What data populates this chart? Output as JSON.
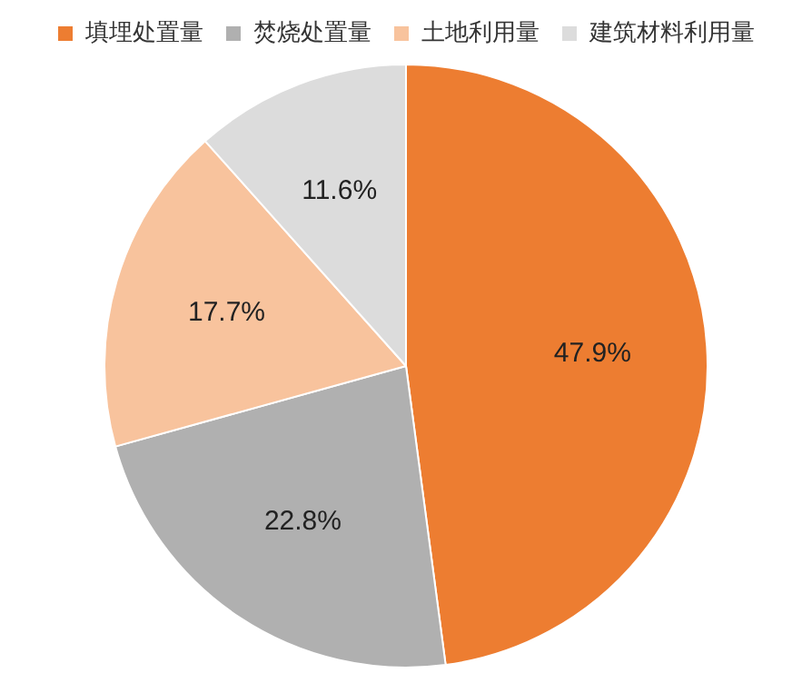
{
  "chart_data": {
    "type": "pie",
    "categories": [
      "填埋处置量",
      "焚烧处置量",
      "土地利用量",
      "建筑材料利用量"
    ],
    "values": [
      47.9,
      22.8,
      17.7,
      11.6
    ],
    "value_labels": [
      "47.9%",
      "22.8%",
      "17.7%",
      "11.6%"
    ],
    "colors": [
      "#ed7d31",
      "#b0b0b0",
      "#f8c39d",
      "#dcdcdc"
    ],
    "legend": "top"
  }
}
